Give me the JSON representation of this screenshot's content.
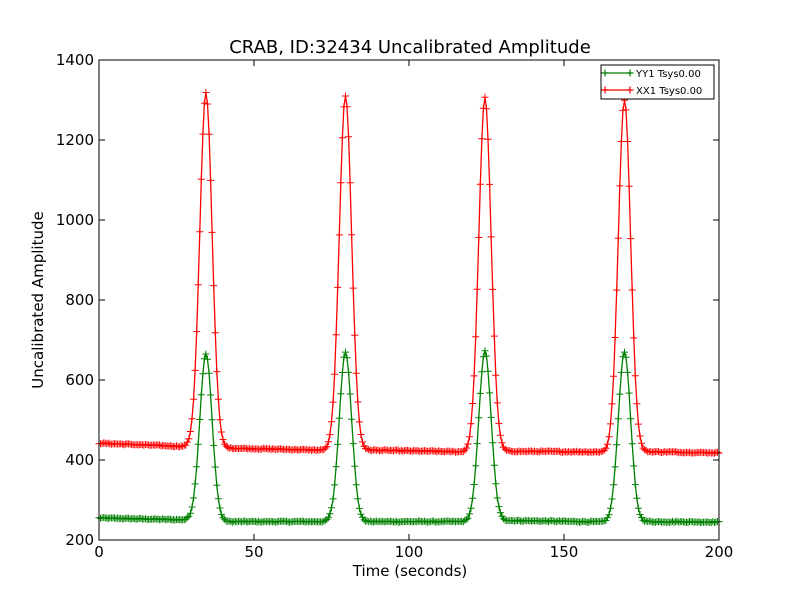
{
  "chart_data": {
    "type": "line",
    "title": "CRAB, ID:32434 Uncalibrated Amplitude",
    "xlabel": "Time (seconds)",
    "ylabel": "Uncalibrated Amplitude",
    "xlim": [
      0,
      200
    ],
    "ylim": [
      200,
      1400
    ],
    "xticks": [
      0,
      50,
      100,
      150,
      200
    ],
    "yticks": [
      200,
      400,
      600,
      800,
      1000,
      1200,
      1400
    ],
    "grid": false,
    "legend_position": "top-right",
    "marker": "+",
    "sample_interval_seconds": 0.5,
    "series": [
      {
        "name": "YY1 Tsys0.00",
        "color": "#008000",
        "baseline": [
          [
            0,
            255
          ],
          [
            30,
            250
          ],
          [
            40,
            246
          ],
          [
            75,
            246
          ],
          [
            85,
            246
          ],
          [
            120,
            246
          ],
          [
            130,
            249
          ],
          [
            165,
            245
          ],
          [
            175,
            246
          ],
          [
            200,
            245
          ]
        ],
        "peaks": [
          {
            "x": 34.5,
            "y": 665,
            "width": 2.0
          },
          {
            "x": 79.5,
            "y": 670,
            "width": 2.0
          },
          {
            "x": 124.5,
            "y": 672,
            "width": 2.0
          },
          {
            "x": 169.5,
            "y": 670,
            "width": 2.0
          }
        ]
      },
      {
        "name": "XX1 Tsys0.00",
        "color": "#ff0000",
        "baseline": [
          [
            0,
            442
          ],
          [
            30,
            433
          ],
          [
            40,
            430
          ],
          [
            75,
            424
          ],
          [
            85,
            425
          ],
          [
            120,
            420
          ],
          [
            130,
            422
          ],
          [
            165,
            420
          ],
          [
            175,
            421
          ],
          [
            200,
            418
          ]
        ],
        "peaks": [
          {
            "x": 34.5,
            "y": 1318,
            "width": 2.0
          },
          {
            "x": 79.5,
            "y": 1311,
            "width": 2.0
          },
          {
            "x": 124.5,
            "y": 1306,
            "width": 2.0
          },
          {
            "x": 169.5,
            "y": 1301,
            "width": 2.0
          }
        ]
      }
    ]
  }
}
